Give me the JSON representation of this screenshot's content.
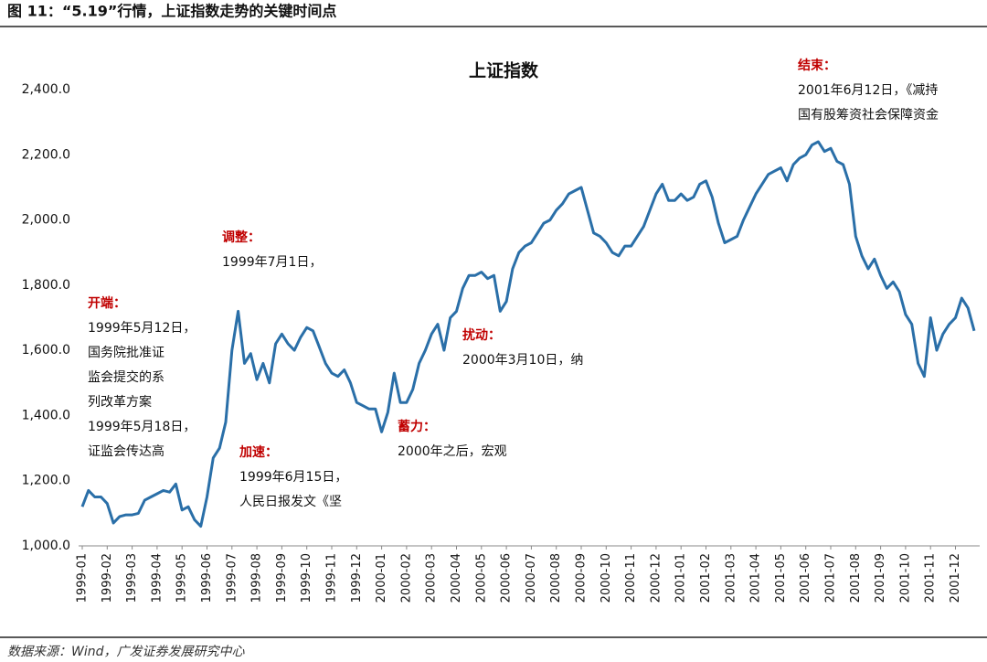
{
  "header": "图 11：“5.19”行情，上证指数走势的关键时间点",
  "source": "数据来源：Wind，广发证券发展研究中心",
  "chart_data": {
    "type": "line",
    "title": "上证指数",
    "color": "#2a6fa8",
    "categories": [
      "1999-01",
      null,
      null,
      null,
      "1999-02",
      null,
      null,
      null,
      "1999-03",
      null,
      null,
      null,
      "1999-04",
      null,
      null,
      null,
      "1999-05",
      null,
      null,
      null,
      "1999-06",
      null,
      null,
      null,
      "1999-07",
      null,
      null,
      null,
      "1999-08",
      null,
      null,
      null,
      "1999-09",
      null,
      null,
      null,
      "1999-10",
      null,
      null,
      null,
      "1999-11",
      null,
      null,
      null,
      "1999-12",
      null,
      null,
      null,
      "2000-01",
      null,
      null,
      null,
      "2000-02",
      null,
      null,
      null,
      "2000-03",
      null,
      null,
      null,
      "2000-04",
      null,
      null,
      null,
      "2000-05",
      null,
      null,
      null,
      "2000-06",
      null,
      null,
      null,
      "2000-07",
      null,
      null,
      null,
      "2000-08",
      null,
      null,
      null,
      "2000-09",
      null,
      null,
      null,
      "2000-10",
      null,
      null,
      null,
      "2000-11",
      null,
      null,
      null,
      "2000-12",
      null,
      null,
      null,
      "2001-01",
      null,
      null,
      null,
      "2001-02",
      null,
      null,
      null,
      "2001-03",
      null,
      null,
      null,
      "2001-04",
      null,
      null,
      null,
      "2001-05",
      null,
      null,
      null,
      "2001-06",
      null,
      null,
      null,
      "2001-07",
      null,
      null,
      null,
      "2001-08",
      null,
      null,
      null,
      "2001-09",
      null,
      null,
      null,
      "2001-10",
      null,
      null,
      null,
      "2001-11",
      null,
      null,
      null,
      "2001-12",
      null,
      null,
      null
    ],
    "values": [
      1120,
      1170,
      1150,
      1150,
      1130,
      1070,
      1090,
      1095,
      1095,
      1100,
      1140,
      1150,
      1160,
      1170,
      1165,
      1190,
      1110,
      1120,
      1080,
      1060,
      1150,
      1270,
      1300,
      1380,
      1600,
      1720,
      1560,
      1590,
      1510,
      1560,
      1500,
      1620,
      1650,
      1620,
      1600,
      1640,
      1670,
      1660,
      1610,
      1560,
      1530,
      1520,
      1540,
      1500,
      1440,
      1430,
      1420,
      1420,
      1350,
      1410,
      1530,
      1440,
      1440,
      1480,
      1560,
      1600,
      1650,
      1680,
      1600,
      1700,
      1720,
      1790,
      1830,
      1830,
      1840,
      1820,
      1830,
      1720,
      1750,
      1850,
      1900,
      1920,
      1930,
      1960,
      1990,
      2000,
      2030,
      2050,
      2080,
      2090,
      2100,
      2030,
      1960,
      1950,
      1930,
      1900,
      1890,
      1920,
      1920,
      1950,
      1980,
      2030,
      2080,
      2110,
      2060,
      2060,
      2080,
      2060,
      2070,
      2110,
      2120,
      2070,
      1990,
      1930,
      1940,
      1950,
      2000,
      2040,
      2080,
      2110,
      2140,
      2150,
      2160,
      2120,
      2170,
      2190,
      2200,
      2230,
      2240,
      2210,
      2220,
      2180,
      2170,
      2110,
      1950,
      1890,
      1850,
      1880,
      1830,
      1790,
      1810,
      1780,
      1710,
      1680,
      1560,
      1520,
      1700,
      1600,
      1650,
      1680,
      1700,
      1760,
      1730,
      1660
    ],
    "ylim": [
      1000,
      2400
    ],
    "yticks": [
      {
        "value": 1000,
        "label": "1,000.0"
      },
      {
        "value": 1200,
        "label": "1,200.0"
      },
      {
        "value": 1400,
        "label": "1,400.0"
      },
      {
        "value": 1600,
        "label": "1,600.0"
      },
      {
        "value": 1800,
        "label": "1,800.0"
      },
      {
        "value": 2000,
        "label": "2,000.0"
      },
      {
        "value": 2200,
        "label": "2,200.0"
      },
      {
        "value": 2400,
        "label": "2,400.0"
      }
    ],
    "annotations": [
      {
        "title": "结束：",
        "lines": [
          "2001年6月12日，《减持",
          "国有股筹资社会保障资金"
        ]
      },
      {
        "title": "调整：",
        "lines": [
          "1999年7月1日，"
        ]
      },
      {
        "title": "开端：",
        "lines": [
          "1999年5月12日，",
          "国务院批准证",
          "监会提交的系",
          "列改革方案",
          "1999年5月18日，",
          "证监会传达高"
        ]
      },
      {
        "title": "扰动：",
        "lines": [
          "2000年3月10日，纳"
        ]
      },
      {
        "title": "蓄力：",
        "lines": [
          "2000年之后，宏观"
        ]
      },
      {
        "title": "加速：",
        "lines": [
          "1999年6月15日，",
          "人民日报发文《坚"
        ]
      }
    ]
  }
}
